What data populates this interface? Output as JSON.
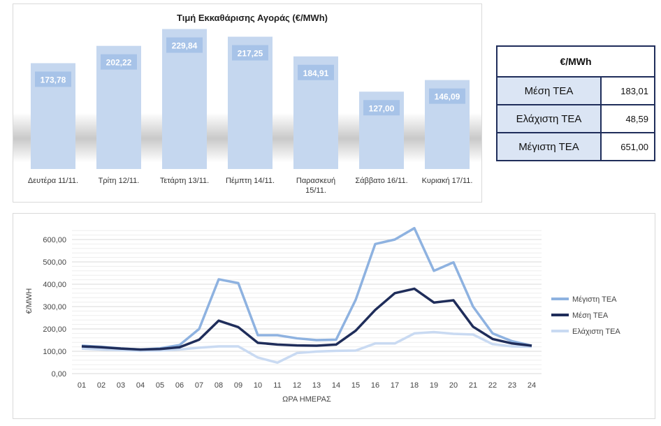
{
  "bar_chart": {
    "title": "Τιμή Εκκαθάρισης Αγοράς (€/MWh)"
  },
  "stats_table": {
    "header": "€/MWh",
    "rows": [
      {
        "label": "Μέση ΤΕΑ",
        "value": "183,01"
      },
      {
        "label": "Ελάχιστη ΤΕΑ",
        "value": "48,59"
      },
      {
        "label": "Μέγιστη ΤΕΑ",
        "value": "651,00"
      }
    ]
  },
  "line_chart": {
    "ylabel": "€/MWH",
    "xlabel": "ΩΡΑ ΗΜΕΡΑΣ"
  },
  "chart_data": [
    {
      "type": "bar",
      "title": "Τιμή Εκκαθάρισης Αγοράς (€/MWh)",
      "categories": [
        "Δευτέρα 11/11.",
        "Τρίτη 12/11.",
        "Τετάρτη 13/11.",
        "Πέμπτη 14/11.",
        "Παρασκευή 15/11.",
        "Σάββατο 16/11.",
        "Κυριακή 17/11."
      ],
      "category_lines": [
        [
          "Δευτέρα 11/11."
        ],
        [
          "Τρίτη 12/11."
        ],
        [
          "Τετάρτη 13/11."
        ],
        [
          "Πέμπτη 14/11."
        ],
        [
          "Παρασκευή",
          "15/11."
        ],
        [
          "Σάββατο 16/11."
        ],
        [
          "Κυριακή 17/11."
        ]
      ],
      "values": [
        173.78,
        202.22,
        229.84,
        217.25,
        184.91,
        127.0,
        146.09
      ],
      "value_labels": [
        "173,78",
        "202,22",
        "229,84",
        "217,25",
        "184,91",
        "127,00",
        "146,09"
      ],
      "bar_color": "#c5d7ef",
      "label_color": "#a7c3e8"
    },
    {
      "type": "line",
      "xlabel": "ΩΡΑ ΗΜΕΡΑΣ",
      "ylabel": "€/MWH",
      "ylim": [
        0,
        650
      ],
      "yticks": [
        "0,00",
        "100,00",
        "200,00",
        "300,00",
        "400,00",
        "500,00",
        "600,00"
      ],
      "x": [
        "01",
        "02",
        "03",
        "04",
        "05",
        "06",
        "07",
        "08",
        "09",
        "10",
        "11",
        "12",
        "13",
        "14",
        "15",
        "16",
        "17",
        "18",
        "19",
        "20",
        "21",
        "22",
        "23",
        "24"
      ],
      "grid": true,
      "legend": "right",
      "series": [
        {
          "name": "Μέγιστη ΤΕΑ",
          "color": "#8eb2e0",
          "values": [
            125,
            120,
            113,
            108,
            113,
            128,
            200,
            422,
            405,
            172,
            172,
            158,
            150,
            152,
            330,
            580,
            600,
            651,
            460,
            498,
            300,
            180,
            145,
            125
          ]
        },
        {
          "name": "Μέση ΤΕΑ",
          "color": "#1f2d5a",
          "values": [
            122,
            118,
            112,
            108,
            110,
            118,
            152,
            237,
            208,
            138,
            130,
            126,
            125,
            130,
            192,
            285,
            360,
            380,
            318,
            328,
            210,
            155,
            135,
            125
          ]
        },
        {
          "name": "Ελάχιστη ΤΕΑ",
          "color": "#c9daf2",
          "values": [
            112,
            108,
            105,
            102,
            103,
            108,
            116,
            122,
            122,
            72,
            49,
            92,
            99,
            102,
            103,
            135,
            135,
            180,
            186,
            178,
            175,
            132,
            122,
            120
          ]
        }
      ]
    }
  ]
}
